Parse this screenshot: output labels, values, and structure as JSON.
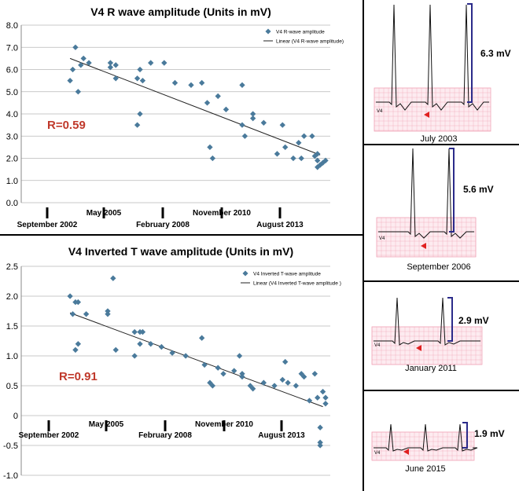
{
  "chart_data": [
    {
      "type": "scatter",
      "title": "V4 R wave amplitude (Units in mV)",
      "legend": {
        "placement": "top-right",
        "marker_label": "V4 R-wave amplitude",
        "line_label": "Linear (V4 R-wave amplitude)"
      },
      "annotation": "R=0.59",
      "ylim": [
        0,
        8
      ],
      "yticks": [
        "0.0",
        "1.0",
        "2.0",
        "3.0",
        "4.0",
        "5.0",
        "6.0",
        "7.0",
        "8.0"
      ],
      "xticks_lower": [
        "September 2002",
        "February 2008",
        "August 2013"
      ],
      "xticks_upper": [
        "May 2005",
        "November 2010"
      ],
      "grid": true,
      "trendline": {
        "start": [
          0.05,
          6.5
        ],
        "end": [
          0.98,
          2.15
        ]
      },
      "points": [
        [
          0.05,
          5.5
        ],
        [
          0.06,
          6.0
        ],
        [
          0.07,
          7.0
        ],
        [
          0.08,
          5.0
        ],
        [
          0.09,
          6.2
        ],
        [
          0.12,
          6.3
        ],
        [
          0.1,
          6.5
        ],
        [
          0.2,
          6.3
        ],
        [
          0.2,
          6.1
        ],
        [
          0.22,
          6.2
        ],
        [
          0.22,
          5.6
        ],
        [
          0.3,
          5.6
        ],
        [
          0.31,
          6.0
        ],
        [
          0.31,
          4.0
        ],
        [
          0.3,
          3.5
        ],
        [
          0.32,
          5.5
        ],
        [
          0.35,
          6.3
        ],
        [
          0.4,
          6.3
        ],
        [
          0.44,
          5.4
        ],
        [
          0.5,
          5.3
        ],
        [
          0.54,
          5.4
        ],
        [
          0.56,
          4.5
        ],
        [
          0.57,
          2.5
        ],
        [
          0.58,
          2.0
        ],
        [
          0.6,
          4.8
        ],
        [
          0.63,
          4.2
        ],
        [
          0.69,
          5.3
        ],
        [
          0.69,
          3.5
        ],
        [
          0.7,
          3.0
        ],
        [
          0.73,
          4.0
        ],
        [
          0.73,
          3.8
        ],
        [
          0.77,
          3.6
        ],
        [
          0.82,
          2.2
        ],
        [
          0.84,
          3.5
        ],
        [
          0.85,
          2.5
        ],
        [
          0.88,
          2.0
        ],
        [
          0.9,
          2.7
        ],
        [
          0.91,
          2.0
        ],
        [
          0.92,
          3.0
        ],
        [
          0.95,
          3.0
        ],
        [
          0.96,
          2.1
        ],
        [
          0.97,
          2.2
        ],
        [
          0.97,
          1.9
        ],
        [
          0.97,
          1.6
        ],
        [
          0.98,
          1.7
        ],
        [
          0.99,
          1.8
        ],
        [
          1.0,
          1.9
        ]
      ]
    },
    {
      "type": "scatter",
      "title": "V4 Inverted T wave amplitude (Units in mV)",
      "legend": {
        "placement": "top-right",
        "marker_label": "V4 Inverted T-wave amplitude",
        "line_label": "Linear (V4 Inverted T-wave amplitude )"
      },
      "annotation": "R=0.91",
      "ylim": [
        -1,
        2.5
      ],
      "yticks": [
        "-1.0",
        "-0.5",
        "0",
        "0.5",
        "1.0",
        "1.5",
        "2.0",
        "2.5"
      ],
      "xticks_lower": [
        "September 2002",
        "February 2008",
        "August 2013"
      ],
      "xticks_upper": [
        "May 2005",
        "November 2010"
      ],
      "grid": true,
      "trendline": {
        "start": [
          0.05,
          1.72
        ],
        "end": [
          0.99,
          0.15
        ]
      },
      "points": [
        [
          0.05,
          2.0
        ],
        [
          0.06,
          1.7
        ],
        [
          0.07,
          1.9
        ],
        [
          0.08,
          1.9
        ],
        [
          0.08,
          1.2
        ],
        [
          0.07,
          1.1
        ],
        [
          0.11,
          1.7
        ],
        [
          0.19,
          1.7
        ],
        [
          0.19,
          1.75
        ],
        [
          0.21,
          2.3
        ],
        [
          0.22,
          1.1
        ],
        [
          0.29,
          1.4
        ],
        [
          0.29,
          1.0
        ],
        [
          0.31,
          1.4
        ],
        [
          0.32,
          1.4
        ],
        [
          0.31,
          1.2
        ],
        [
          0.35,
          1.2
        ],
        [
          0.39,
          1.15
        ],
        [
          0.43,
          1.05
        ],
        [
          0.48,
          1.0
        ],
        [
          0.54,
          1.3
        ],
        [
          0.55,
          0.85
        ],
        [
          0.57,
          0.55
        ],
        [
          0.58,
          0.5
        ],
        [
          0.6,
          0.8
        ],
        [
          0.62,
          0.7
        ],
        [
          0.66,
          0.75
        ],
        [
          0.68,
          1.0
        ],
        [
          0.69,
          0.7
        ],
        [
          0.69,
          0.65
        ],
        [
          0.72,
          0.5
        ],
        [
          0.73,
          0.45
        ],
        [
          0.77,
          0.55
        ],
        [
          0.81,
          0.5
        ],
        [
          0.84,
          0.6
        ],
        [
          0.85,
          0.9
        ],
        [
          0.86,
          0.55
        ],
        [
          0.89,
          0.5
        ],
        [
          0.91,
          0.7
        ],
        [
          0.92,
          0.65
        ],
        [
          0.94,
          0.25
        ],
        [
          0.96,
          0.7
        ],
        [
          0.97,
          0.3
        ],
        [
          0.98,
          -0.2
        ],
        [
          0.98,
          -0.45
        ],
        [
          0.98,
          -0.5
        ],
        [
          0.99,
          0.4
        ],
        [
          1.0,
          0.2
        ],
        [
          1.0,
          0.3
        ]
      ]
    }
  ],
  "ecg_panels": [
    {
      "caption": "July 2003",
      "amplitude": "6.3 mV"
    },
    {
      "caption": "September 2006",
      "amplitude": "5.6 mV"
    },
    {
      "caption": "January 2011",
      "amplitude": "2.9 mV"
    },
    {
      "caption": "June 2015",
      "amplitude": "1.9 mV"
    }
  ],
  "ecg_lead_label": "V4",
  "colors": {
    "marker": "#4a7a9b",
    "annotation": "#c0392b",
    "grid_bg": "#fdebf0",
    "grid_line": "#f1a7b9",
    "arrow": "#e02020",
    "bracket": "#2b2b8a"
  }
}
